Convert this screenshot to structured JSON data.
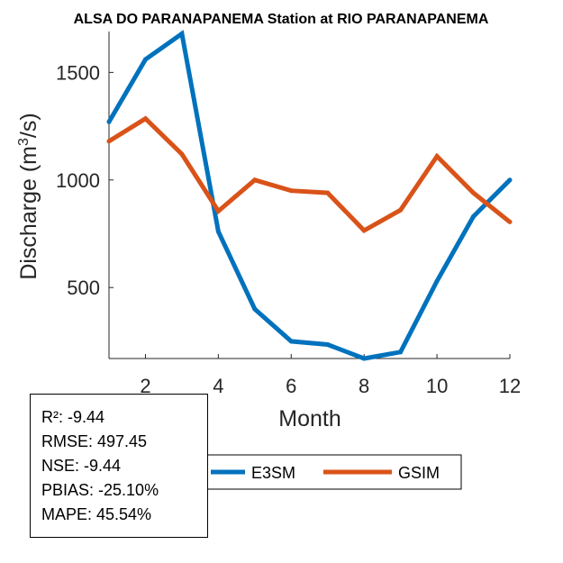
{
  "chart_data": {
    "type": "line",
    "title": "ALSA DO PARANAPANEMA  Station at  RIO PARANAPANEMA",
    "xlabel": "Month",
    "ylabel_prefix": "Discharge (m",
    "ylabel_sup": "3",
    "ylabel_suffix": "/s)",
    "xlim": [
      1,
      12
    ],
    "ylim": [
      170,
      1690
    ],
    "xticks": [
      2,
      4,
      6,
      8,
      10,
      12
    ],
    "yticks": [
      500,
      1000,
      1500
    ],
    "x": [
      1,
      2,
      3,
      4,
      5,
      6,
      7,
      8,
      9,
      10,
      11,
      12
    ],
    "series": [
      {
        "name": "E3SM",
        "color": "#0072BD",
        "values": [
          1270,
          1560,
          1680,
          760,
          400,
          250,
          235,
          170,
          200,
          530,
          830,
          1000
        ]
      },
      {
        "name": "GSIM",
        "color": "#D95319",
        "values": [
          1180,
          1285,
          1120,
          855,
          1000,
          950,
          940,
          765,
          860,
          1110,
          940,
          805
        ]
      }
    ]
  },
  "stats": [
    "R²: -9.44",
    "RMSE: 497.45",
    "NSE: -9.44",
    "PBIAS: -25.10%",
    "MAPE: 45.54%"
  ]
}
